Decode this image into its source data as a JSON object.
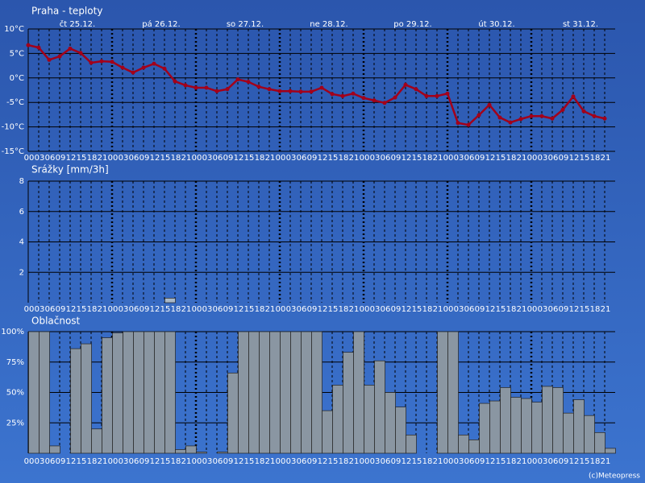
{
  "chart_data": [
    {
      "type": "line",
      "title": "Praha - teploty",
      "color": "#a3001a",
      "day_labels": [
        "čt 25.12.",
        "pá 26.12.",
        "so 27.12.",
        "ne 28.12.",
        "po 29.12.",
        "út 30.12.",
        "st 31.12."
      ],
      "categories": [
        "00",
        "03",
        "06",
        "09",
        "12",
        "15",
        "18",
        "21",
        "00",
        "03",
        "06",
        "09",
        "12",
        "15",
        "18",
        "21",
        "00",
        "03",
        "06",
        "09",
        "12",
        "15",
        "18",
        "21",
        "00",
        "03",
        "06",
        "09",
        "12",
        "15",
        "18",
        "21",
        "00",
        "03",
        "06",
        "09",
        "12",
        "15",
        "18",
        "21",
        "00",
        "03",
        "06",
        "09",
        "12",
        "15",
        "18",
        "21",
        "00",
        "03",
        "06",
        "09",
        "12",
        "15",
        "18",
        "21"
      ],
      "values": [
        6.7,
        6.2,
        3.7,
        4.4,
        6.0,
        5.1,
        3.1,
        3.4,
        3.3,
        2.1,
        1.1,
        2.1,
        2.9,
        1.9,
        -0.7,
        -1.5,
        -2.0,
        -2.0,
        -2.7,
        -2.3,
        -0.3,
        -0.8,
        -1.8,
        -2.3,
        -2.7,
        -2.7,
        -2.8,
        -2.8,
        -2.0,
        -3.3,
        -3.7,
        -3.2,
        -4.1,
        -4.6,
        -5.1,
        -4.0,
        -1.4,
        -2.3,
        -3.7,
        -3.7,
        -3.2,
        -9.2,
        -9.6,
        -7.6,
        -5.5,
        -8.1,
        -9.1,
        -8.4,
        -7.8,
        -7.8,
        -8.3,
        -6.5,
        -3.8,
        -6.8,
        -7.8,
        -8.3
      ],
      "ylim": [
        -15,
        10
      ],
      "yticks": [
        {
          "value": 10,
          "label": "10°C"
        },
        {
          "value": 5,
          "label": "5°C"
        },
        {
          "value": 0,
          "label": "0°C"
        },
        {
          "value": -5,
          "label": "-5°C"
        },
        {
          "value": -10,
          "label": "-10°C"
        },
        {
          "value": -15,
          "label": "-15°C"
        }
      ],
      "grid": true
    },
    {
      "type": "bar",
      "title": "Srážky [mm/3h]",
      "color": "#a9b8c8",
      "categories": [
        "00",
        "03",
        "06",
        "09",
        "12",
        "15",
        "18",
        "21",
        "00",
        "03",
        "06",
        "09",
        "12",
        "15",
        "18",
        "21",
        "00",
        "03",
        "06",
        "09",
        "12",
        "15",
        "18",
        "21",
        "00",
        "03",
        "06",
        "09",
        "12",
        "15",
        "18",
        "21",
        "00",
        "03",
        "06",
        "09",
        "12",
        "15",
        "18",
        "21",
        "00",
        "03",
        "06",
        "09",
        "12",
        "15",
        "18",
        "21",
        "00",
        "03",
        "06",
        "09",
        "12",
        "15",
        "18",
        "21"
      ],
      "values": [
        0,
        0,
        0,
        0,
        0,
        0,
        0,
        0,
        0,
        0,
        0,
        0,
        0,
        0.3,
        0,
        0,
        0,
        0,
        0,
        0,
        0,
        0,
        0,
        0,
        0,
        0,
        0,
        0,
        0,
        0,
        0,
        0,
        0,
        0,
        0,
        0,
        0,
        0,
        0,
        0,
        0,
        0,
        0,
        0,
        0,
        0,
        0,
        0,
        0,
        0,
        0,
        0,
        0,
        0,
        0,
        0
      ],
      "ylim": [
        0,
        8
      ],
      "yticks": [
        2,
        4,
        6,
        8
      ],
      "grid": true
    },
    {
      "type": "bar",
      "title": "Oblačnost",
      "color": "#8a96a2",
      "categories": [
        "00",
        "03",
        "06",
        "09",
        "12",
        "15",
        "18",
        "21",
        "00",
        "03",
        "06",
        "09",
        "12",
        "15",
        "18",
        "21",
        "00",
        "03",
        "06",
        "09",
        "12",
        "15",
        "18",
        "21",
        "00",
        "03",
        "06",
        "09",
        "12",
        "15",
        "18",
        "21",
        "00",
        "03",
        "06",
        "09",
        "12",
        "15",
        "18",
        "21",
        "00",
        "03",
        "06",
        "09",
        "12",
        "15",
        "18",
        "21",
        "00",
        "03",
        "06",
        "09",
        "12",
        "15",
        "18",
        "21"
      ],
      "values": [
        100,
        100,
        6,
        0,
        86,
        90,
        20,
        95,
        99,
        100,
        100,
        100,
        100,
        100,
        3,
        6,
        1,
        0,
        1,
        66,
        100,
        100,
        100,
        100,
        100,
        100,
        100,
        100,
        35,
        56,
        83,
        100,
        56,
        76,
        50,
        38,
        15,
        0,
        0,
        100,
        100,
        15,
        11,
        41,
        43,
        54,
        46,
        45,
        42,
        55,
        54,
        33,
        44,
        31,
        17,
        4
      ],
      "ylim": [
        0,
        100
      ],
      "yticks": [
        {
          "value": 100,
          "label": "100%"
        },
        {
          "value": 75,
          "label": "75%"
        },
        {
          "value": 50,
          "label": "50%"
        },
        {
          "value": 25,
          "label": "25%"
        }
      ],
      "grid": true
    }
  ],
  "footer": "(c)Meteopress"
}
